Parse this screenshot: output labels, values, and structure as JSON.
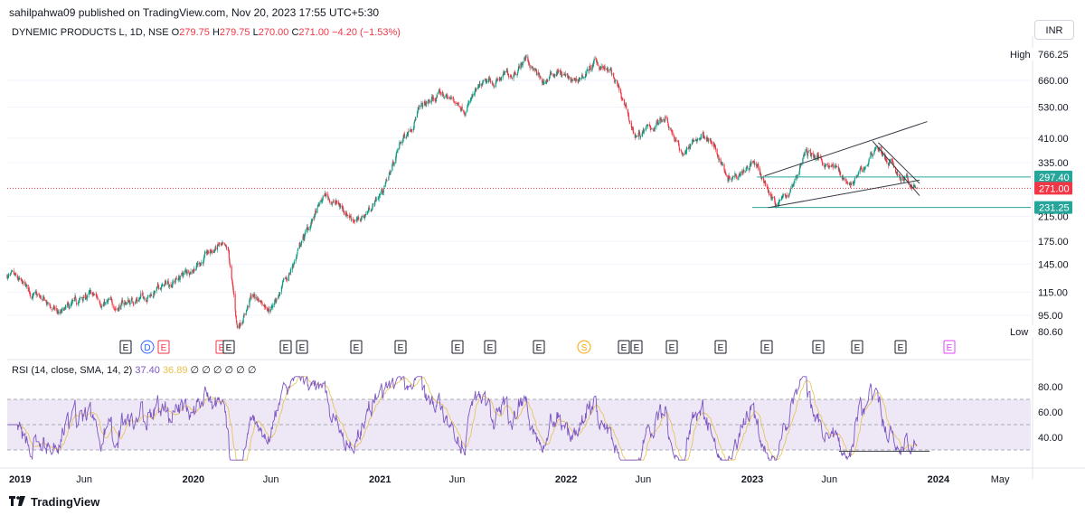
{
  "publisher": "sahilpahwa09 published on TradingView.com, Nov 20, 2023 17:55 UTC+5:30",
  "symbol": "DYNEMIC PRODUCTS L, 1D, NSE",
  "ohlc": {
    "open_label": "O",
    "open": "279.75",
    "high_label": "H",
    "high": "279.75",
    "low_label": "L",
    "low": "270.00",
    "close_label": "C",
    "close": "271.00",
    "change": "−4.20 (−1.53%)"
  },
  "currency": "INR",
  "colors": {
    "up": "#089981",
    "down": "#f23645",
    "rsi": "#7e57c2",
    "rsi_ma": "#e8c14e",
    "level": "#26a69a",
    "band": "#ede7f6"
  },
  "chart_data": [
    {
      "type": "candlestick",
      "scale": "log",
      "x_range": [
        "2019-01-01",
        "2024-06-30"
      ],
      "y_range": [
        80,
        870
      ],
      "y_ticks": [
        "660.00",
        "530.00",
        "410.00",
        "335.00",
        "215.00",
        "175.00",
        "145.00",
        "115.00",
        "95.00"
      ],
      "markers": [
        {
          "label": "High",
          "value": "766.25"
        },
        {
          "label": "Low",
          "value": "80.60"
        }
      ],
      "price_labels": [
        {
          "value": "297.40",
          "kind": "level"
        },
        {
          "value": "271.00",
          "kind": "last"
        },
        {
          "value": "231.25",
          "kind": "level"
        }
      ],
      "horizontal_levels": [
        297.4,
        231.25
      ],
      "last_price": 271.0,
      "trendlines": [
        {
          "from": [
            "2023-02-01",
            231
          ],
          "to": [
            "2023-11-25",
            290
          ]
        },
        {
          "from": [
            "2023-01-25",
            300
          ],
          "to": [
            "2023-12-10",
            470
          ]
        },
        {
          "from": [
            "2023-08-25",
            400
          ],
          "to": [
            "2023-11-25",
            255
          ]
        },
        {
          "from": [
            "2023-09-05",
            395
          ],
          "to": [
            "2023-11-25",
            282
          ]
        }
      ],
      "earnings_marks": [
        "E",
        "D",
        "E",
        "E",
        "E",
        "E",
        "E",
        "E",
        "E",
        "E",
        "E",
        "E",
        "S",
        "E",
        "E",
        "E",
        "E",
        "E",
        "E",
        "E",
        "E"
      ],
      "path": [
        [
          "2019-01-01",
          132
        ],
        [
          "2019-03-15",
          105
        ],
        [
          "2019-04-15",
          95
        ],
        [
          "2019-06-10",
          112
        ],
        [
          "2019-08-01",
          102
        ],
        [
          "2019-10-15",
          115
        ],
        [
          "2019-12-10",
          132
        ],
        [
          "2020-02-20",
          168
        ],
        [
          "2020-03-10",
          155
        ],
        [
          "2020-03-27",
          85
        ],
        [
          "2020-04-25",
          112
        ],
        [
          "2020-06-01",
          102
        ],
        [
          "2020-07-01",
          125
        ],
        [
          "2020-08-01",
          175
        ],
        [
          "2020-09-15",
          255
        ],
        [
          "2020-10-20",
          230
        ],
        [
          "2020-11-20",
          205
        ],
        [
          "2020-12-20",
          240
        ],
        [
          "2021-01-10",
          275
        ],
        [
          "2021-02-10",
          390
        ],
        [
          "2021-03-15",
          510
        ],
        [
          "2021-05-01",
          590
        ],
        [
          "2021-06-15",
          530
        ],
        [
          "2021-07-20",
          620
        ],
        [
          "2021-09-15",
          700
        ],
        [
          "2021-10-15",
          800
        ],
        [
          "2021-11-15",
          640
        ],
        [
          "2021-12-15",
          720
        ],
        [
          "2022-01-15",
          640
        ],
        [
          "2022-03-01",
          760
        ],
        [
          "2022-04-01",
          690
        ],
        [
          "2022-05-15",
          420
        ],
        [
          "2022-06-15",
          440
        ],
        [
          "2022-07-15",
          500
        ],
        [
          "2022-08-15",
          360
        ],
        [
          "2022-10-01",
          430
        ],
        [
          "2022-11-15",
          300
        ],
        [
          "2023-01-01",
          340
        ],
        [
          "2023-02-15",
          240
        ],
        [
          "2023-03-15",
          260
        ],
        [
          "2023-04-15",
          365
        ],
        [
          "2023-06-01",
          335
        ],
        [
          "2023-07-15",
          280
        ],
        [
          "2023-08-10",
          320
        ],
        [
          "2023-09-01",
          390
        ],
        [
          "2023-10-15",
          300
        ],
        [
          "2023-11-20",
          271
        ]
      ]
    },
    {
      "type": "line",
      "title": "RSI (14, close, SMA, 14, 2)",
      "legend_values": [
        "37.40",
        "36.89",
        "∅",
        "∅",
        "∅",
        "∅",
        "∅",
        "∅"
      ],
      "y_range": [
        20,
        90
      ],
      "y_ticks": [
        "80.00",
        "60.00",
        "40.00"
      ],
      "bands": [
        70,
        50,
        30
      ],
      "series": [
        {
          "name": "RSI",
          "color": "#7e57c2",
          "x_range": [
            "2019-01-01",
            "2023-11-20"
          ],
          "last": 37.4
        },
        {
          "name": "RSI-based MA",
          "color": "#e8c14e",
          "last": 36.89
        }
      ]
    }
  ],
  "x_axis_labels": [
    "2019",
    "Jun",
    "2020",
    "Jun",
    "2021",
    "Jun",
    "2022",
    "Jun",
    "2023",
    "Jun",
    "2024",
    "May"
  ],
  "brand": "TradingView"
}
